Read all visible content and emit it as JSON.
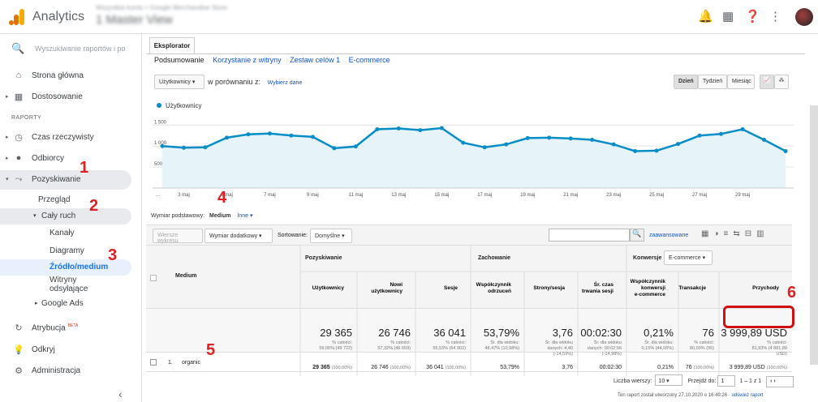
{
  "app": {
    "name": "Analytics",
    "account_small": "Wszystkie konta > Google Merchandise Store",
    "view": "1 Master View"
  },
  "sidebar": {
    "search_placeholder": "Wyszukiwanie raportów i po",
    "home": "Strona główna",
    "custom": "Dostosowanie",
    "section": "RAPORTY",
    "realtime": "Czas rzeczywisty",
    "audience": "Odbiorcy",
    "acquisition": "Pozyskiwanie",
    "overview": "Przegląd",
    "all_traffic": "Cały ruch",
    "channels": "Kanały",
    "treemaps": "Diagramy",
    "source_medium": "Źródło/medium",
    "referrals": "Witryny odsyłające",
    "google_ads": "Google Ads",
    "attribution": "Atrybucja",
    "attribution_badge": "BETA",
    "discover": "Odkryj",
    "admin": "Administracja"
  },
  "explorer": {
    "tab": "Eksplorator",
    "subtabs": [
      "Podsumowanie",
      "Korzystanie z witryny",
      "Zestaw celów 1",
      "E-commerce"
    ],
    "metric_select": "Użytkownicy",
    "compare_label": "w porównaniu z:",
    "choose_metric": "Wybierz dane",
    "periods": [
      "Dzień",
      "Tydzień",
      "Miesiąc"
    ]
  },
  "chart_data": {
    "type": "line",
    "series": [
      {
        "name": "Użytkownicy",
        "values": [
          1000,
          960,
          970,
          1200,
          1280,
          1300,
          1250,
          1220,
          950,
          990,
          1400,
          1420,
          1380,
          1430,
          1080,
          970,
          1040,
          1190,
          1200,
          1180,
          1150,
          1040,
          880,
          890,
          1050,
          1250,
          1290,
          1400,
          1150,
          880
        ]
      }
    ],
    "y_ticks": [
      "1 500",
      "1 000",
      "500"
    ],
    "x_ticks": [
      "...",
      "3 maj",
      "5 maj",
      "7 maj",
      "9 maj",
      "11 maj",
      "13 maj",
      "15 maj",
      "17 maj",
      "19 maj",
      "21 maj",
      "23 maj",
      "25 maj",
      "27 maj",
      "29 maj"
    ],
    "color": "#058dc7"
  },
  "dimension": {
    "label": "Wymiar podstawowy:",
    "current": "Medium",
    "other": "Inne"
  },
  "toolbar": {
    "plot_rows": "Wiersze wykresu",
    "secondary": "Wymiar dodatkowy",
    "sort_label": "Sortowanie:",
    "sort_value": "Domyślne",
    "advanced": "zaawansowane"
  },
  "table": {
    "groups": [
      "Pozyskiwanie",
      "Zachowanie",
      "Konwersje"
    ],
    "conv_select": "E-commerce",
    "dim_header": "Medium",
    "headers": [
      "Użytkownicy",
      "Nowi użytkownicy",
      "Sesje",
      "Współczynnik odrzuceń",
      "Strony/sesja",
      "Śr. czas trwania sesji",
      "Współczynnik konwersji e-commerce",
      "Transakcje",
      "Przychody"
    ],
    "totals": [
      {
        "v": "29 365",
        "s": "% całości: 59,06% (49 722)"
      },
      {
        "v": "26 746",
        "s": "% całości: 57,32% (46 659)"
      },
      {
        "v": "36 041",
        "s": "% całości: 55,53% (64 902)"
      },
      {
        "v": "53,79%",
        "s": "Śr. dla widoku: 48,47% (10,98%)"
      },
      {
        "v": "3,76",
        "s": "Śr. dla widoku danych: 4,40 (-14,59%)"
      },
      {
        "v": "00:02:30",
        "s": "Śr. dla widoku danych: 00:02:56 (-14,98%)"
      },
      {
        "v": "0,21%",
        "s": "Śr. dla widoku: 0,15% (44,06%)"
      },
      {
        "v": "76",
        "s": "% całości: 80,00% (95)"
      },
      {
        "v": "3 999,89 USD",
        "s": "% całości: 81,93% (4 881,89 USD)"
      }
    ],
    "row": {
      "idx": "1.",
      "medium": "organic",
      "cells": [
        "29 365",
        "26 746",
        "36 041",
        "53,79%",
        "3,76",
        "00:02:30",
        "0,21%",
        "76",
        "3 999,89 USD"
      ],
      "pct": [
        "(100,00%)",
        "(100,00%)",
        "(100,00%)",
        "",
        "",
        "",
        "",
        "(100,00%)",
        "(100,00%)"
      ]
    }
  },
  "pager": {
    "rows_label": "Liczba wierszy:",
    "rows": "10",
    "goto": "Przejdź do:",
    "page": "1",
    "range": "1 – 1 z 1"
  },
  "footer": {
    "created": "Ten raport został utworzony 27.10.2020 o 16:49:26 ·",
    "refresh": "odśwież raport"
  },
  "markers": [
    "1",
    "2",
    "3",
    "4",
    "5",
    "6"
  ]
}
